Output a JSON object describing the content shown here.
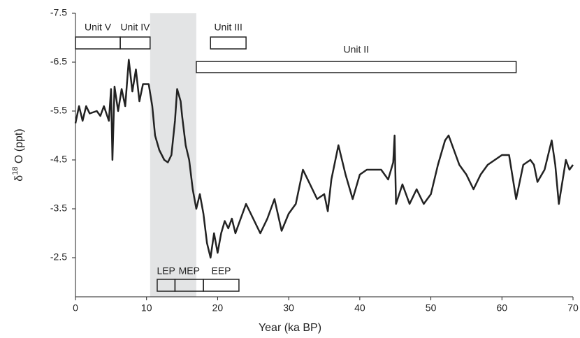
{
  "chart_data": {
    "type": "line",
    "xlabel": "Year (ka BP)",
    "ylabel": {
      "prefix": "δ",
      "sup": "18",
      "suffix": " O (ppt)"
    },
    "xlim": [
      0,
      70
    ],
    "xticks": [
      0,
      10,
      20,
      30,
      40,
      50,
      60,
      70
    ],
    "ylim": [
      -7.5,
      -1.7
    ],
    "yticks": [
      -7.5,
      -6.5,
      -5.5,
      -4.5,
      -3.5,
      -2.5
    ],
    "y_inverted": true,
    "shade": {
      "x": [
        10.5,
        17
      ],
      "color": "#e3e4e5"
    },
    "unit_boxes": [
      {
        "label": "Unit V",
        "x": [
          0,
          6.3
        ],
        "row": "top"
      },
      {
        "label": "Unit IV",
        "x": [
          6.3,
          10.5
        ],
        "row": "top"
      },
      {
        "label": "Unit III",
        "x": [
          19,
          24
        ],
        "row": "top"
      },
      {
        "label": "Unit II",
        "x": [
          17,
          62
        ],
        "row": "middle"
      },
      {
        "label": "LEP",
        "x": [
          11.5,
          14
        ],
        "row": "bottom"
      },
      {
        "label": "MEP",
        "x": [
          14,
          18
        ],
        "row": "bottom"
      },
      {
        "label": "EEP",
        "x": [
          18,
          23
        ],
        "row": "bottom"
      }
    ],
    "x": [
      0,
      0.5,
      1,
      1.5,
      2,
      3,
      3.5,
      4,
      4.7,
      5,
      5.2,
      5.5,
      6,
      6.5,
      7,
      7.5,
      8,
      8.5,
      9,
      9.5,
      10.3,
      10.8,
      11.2,
      11.8,
      12.5,
      13,
      13.5,
      14,
      14.3,
      14.8,
      15,
      15.5,
      16,
      16.5,
      17,
      17.5,
      18,
      18.5,
      19,
      19.5,
      20,
      20.5,
      21,
      21.5,
      22,
      22.5,
      23,
      24,
      25,
      26,
      27,
      28,
      29,
      30,
      31,
      32,
      33,
      34,
      35,
      35.5,
      36,
      37,
      38,
      39,
      40,
      41,
      42,
      43,
      44,
      44.7,
      44.9,
      45.1,
      46,
      47,
      48,
      49,
      50,
      51,
      52,
      52.5,
      53,
      54,
      55,
      56,
      57,
      58,
      59,
      60,
      61,
      62,
      63,
      64,
      64.5,
      65,
      66,
      67,
      67.5,
      68,
      69,
      69.5,
      70
    ],
    "series": [
      {
        "color": "#222222",
        "values": [
          -5.25,
          -5.6,
          -5.3,
          -5.6,
          -5.45,
          -5.5,
          -5.4,
          -5.6,
          -5.3,
          -5.95,
          -4.5,
          -6.0,
          -5.5,
          -5.95,
          -5.6,
          -6.55,
          -5.9,
          -6.35,
          -5.7,
          -6.05,
          -6.05,
          -5.6,
          -5.0,
          -4.7,
          -4.5,
          -4.45,
          -4.6,
          -5.3,
          -5.95,
          -5.7,
          -5.4,
          -4.8,
          -4.5,
          -3.9,
          -3.5,
          -3.8,
          -3.4,
          -2.8,
          -2.5,
          -3.0,
          -2.6,
          -3.0,
          -3.25,
          -3.1,
          -3.3,
          -3.0,
          -3.2,
          -3.6,
          -3.3,
          -3.0,
          -3.3,
          -3.7,
          -3.05,
          -3.4,
          -3.6,
          -4.3,
          -4.0,
          -3.7,
          -3.8,
          -3.45,
          -4.1,
          -4.8,
          -4.2,
          -3.7,
          -4.2,
          -4.3,
          -4.3,
          -4.3,
          -4.1,
          -4.45,
          -5.0,
          -3.6,
          -4.0,
          -3.6,
          -3.9,
          -3.6,
          -3.8,
          -4.4,
          -4.9,
          -5.0,
          -4.8,
          -4.4,
          -4.2,
          -3.9,
          -4.2,
          -4.4,
          -4.5,
          -4.6,
          -4.6,
          -3.7,
          -4.4,
          -4.5,
          -4.4,
          -4.05,
          -4.3,
          -4.9,
          -4.4,
          -3.6,
          -4.5,
          -4.3,
          -4.4
        ]
      }
    ]
  }
}
